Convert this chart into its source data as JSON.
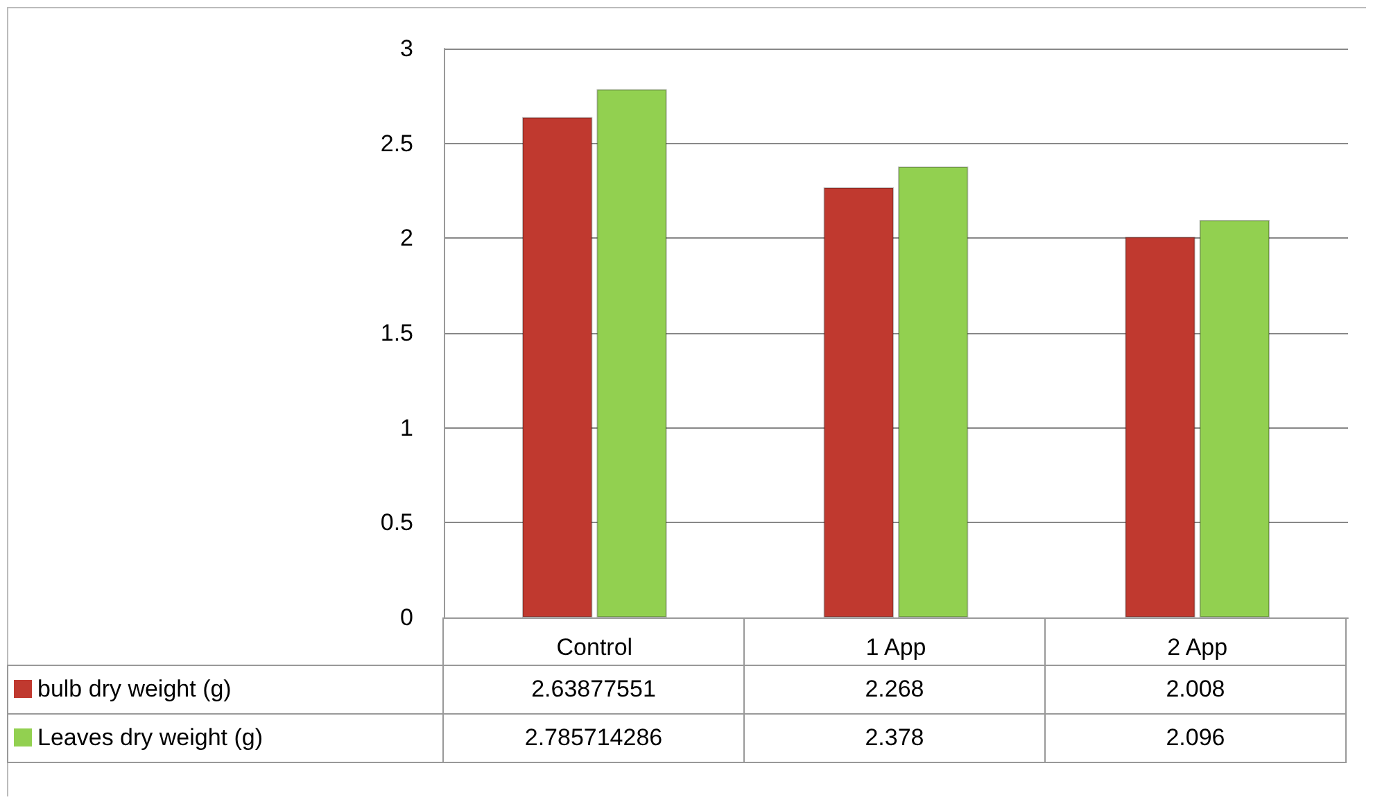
{
  "chart_data": {
    "type": "bar",
    "categories": [
      "Control",
      "1 App",
      "2 App"
    ],
    "series": [
      {
        "name": "bulb dry weight (g)",
        "color": "#c0392f",
        "values": [
          2.63877551,
          2.268,
          2.008
        ]
      },
      {
        "name": "Leaves dry weight (g)",
        "color": "#92d050",
        "values": [
          2.785714286,
          2.378,
          2.096
        ]
      }
    ],
    "ylim": [
      0,
      3
    ],
    "yticks": [
      0,
      0.5,
      1,
      1.5,
      2,
      2.5,
      3
    ],
    "grid": "y",
    "legend": "bottom",
    "data_labels": true
  }
}
